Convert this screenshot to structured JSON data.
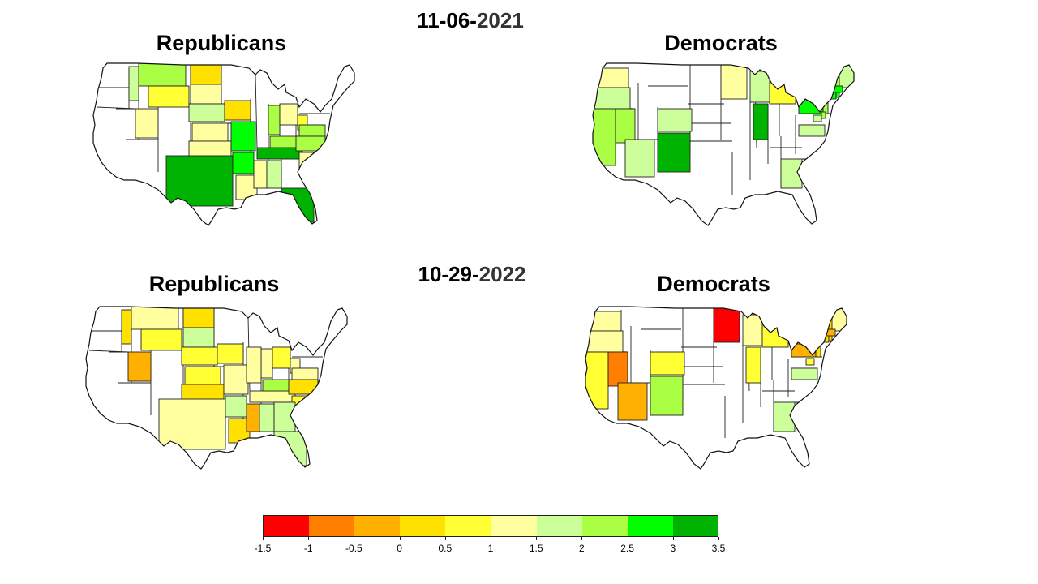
{
  "rows": [
    {
      "date": {
        "main": "11-06-",
        "year": "2021"
      },
      "panels": [
        {
          "title": "Republicans",
          "states": {
            "MT": 2.25,
            "ID": 1.75,
            "WY": 0.75,
            "ND": 0.25,
            "SD": 1.25,
            "NE": 1.75,
            "UT": 1.25,
            "KS": 1.25,
            "OK": 1.25,
            "TX": 3.25,
            "IA": 0.25,
            "MO": 2.75,
            "AR": 2.75,
            "LA": 1.25,
            "MS": 1.25,
            "AL": 1.75,
            "TN": 3.25,
            "KY": 2.25,
            "IN": 2.25,
            "OH": 1.25,
            "WV": 0.75,
            "VA": 2.25,
            "NC": 2.25,
            "SC": 1.25,
            "FL": 3.25
          }
        },
        {
          "title": "Democrats",
          "states": {
            "WA": 1.25,
            "OR": 1.75,
            "CA": 2.25,
            "NV": 2.25,
            "AZ": 1.75,
            "NM": 3.25,
            "CO": 1.75,
            "MN": 1.25,
            "WI": 1.75,
            "MI": 0.75,
            "IL": 3.25,
            "NY": 2.75,
            "PA": 2.75,
            "NJ": 2.25,
            "VA": 1.75,
            "GA": 1.75,
            "VT": 2.25,
            "NH": 2.25,
            "ME": 1.75,
            "MA": 2.75,
            "CT": 2.75,
            "RI": 2.75,
            "MD": 1.75,
            "DE": 2.25
          }
        }
      ]
    },
    {
      "date": {
        "main": "10-29-",
        "year": "2022"
      },
      "panels": [
        {
          "title": "Republicans",
          "states": {
            "ID": 0.25,
            "MT": 1.25,
            "ND": 0.25,
            "SD": 1.75,
            "WY": 0.75,
            "UT": -0.25,
            "NE": 0.75,
            "KS": 0.75,
            "OK": 0.25,
            "TX": 1.25,
            "IA": 0.75,
            "MO": 1.25,
            "AR": 1.75,
            "LA": 0.25,
            "MS": -0.25,
            "AL": 1.75,
            "TN": 1.25,
            "KY": 2.25,
            "IN": 1.25,
            "OH": 0.75,
            "IL": 1.25,
            "WV": 1.25,
            "VA": 1.25,
            "NC": 0.25,
            "SC": 0.75,
            "GA": 1.75,
            "FL": 1.75
          }
        },
        {
          "title": "Democrats",
          "states": {
            "WA": 1.25,
            "OR": 1.25,
            "CA": 0.75,
            "NV": -0.75,
            "AZ": -0.25,
            "NM": 2.25,
            "CO": 0.75,
            "MN": -1.25,
            "WI": 1.25,
            "MI": 0.75,
            "IL": 0.75,
            "NY": 0.25,
            "PA": -0.25,
            "NJ": 0.25,
            "VA": 1.75,
            "GA": 1.75,
            "VT": 1.25,
            "NH": 0.25,
            "ME": 1.25,
            "MA": -0.25,
            "CT": 0.25,
            "RI": 0.25,
            "MD": 0.75
          }
        }
      ]
    }
  ],
  "colorbar": {
    "ticks": [
      "-1.5",
      "-1",
      "-0.5",
      "0",
      "0.5",
      "1",
      "1.5",
      "2",
      "2.5",
      "3",
      "3.5"
    ],
    "min": -1.5,
    "max": 3.5,
    "step": 0.5,
    "colors": [
      "#ff0000",
      "#ff7f00",
      "#ffb000",
      "#ffe100",
      "#ffff33",
      "#ffffa0",
      "#ccff99",
      "#aaff44",
      "#00ff00",
      "#00b300"
    ]
  }
}
